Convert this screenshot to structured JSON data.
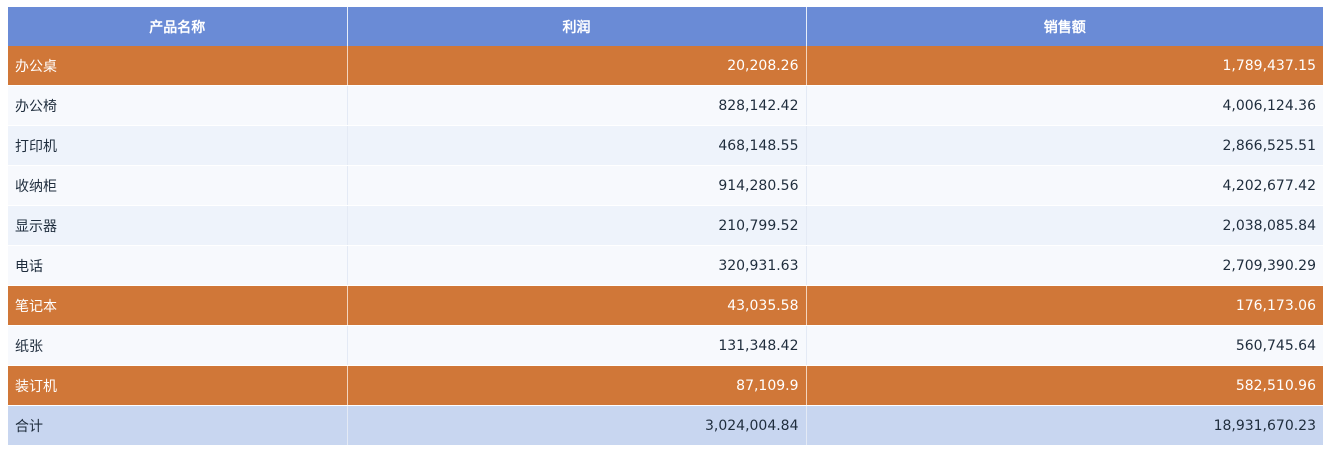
{
  "colors": {
    "header_bg": "#6a8bd6",
    "highlight_bg": "#d07738",
    "row_odd_bg": "#f7f9fd",
    "row_even_bg": "#eef3fb",
    "total_bg": "#c8d6f0"
  },
  "table": {
    "columns": [
      "产品名称",
      "利润",
      "销售额"
    ],
    "rows": [
      {
        "name": "办公桌",
        "profit": "20,208.26",
        "sales": "1,789,437.15",
        "highlight": true
      },
      {
        "name": "办公椅",
        "profit": "828,142.42",
        "sales": "4,006,124.36",
        "highlight": false
      },
      {
        "name": "打印机",
        "profit": "468,148.55",
        "sales": "2,866,525.51",
        "highlight": false
      },
      {
        "name": "收纳柜",
        "profit": "914,280.56",
        "sales": "4,202,677.42",
        "highlight": false
      },
      {
        "name": "显示器",
        "profit": "210,799.52",
        "sales": "2,038,085.84",
        "highlight": false
      },
      {
        "name": "电话",
        "profit": "320,931.63",
        "sales": "2,709,390.29",
        "highlight": false
      },
      {
        "name": "笔记本",
        "profit": "43,035.58",
        "sales": "176,173.06",
        "highlight": true
      },
      {
        "name": "纸张",
        "profit": "131,348.42",
        "sales": "560,745.64",
        "highlight": false
      },
      {
        "name": "装订机",
        "profit": "87,109.9",
        "sales": "582,510.96",
        "highlight": true
      }
    ],
    "total": {
      "name": "合计",
      "profit": "3,024,004.84",
      "sales": "18,931,670.23"
    }
  }
}
